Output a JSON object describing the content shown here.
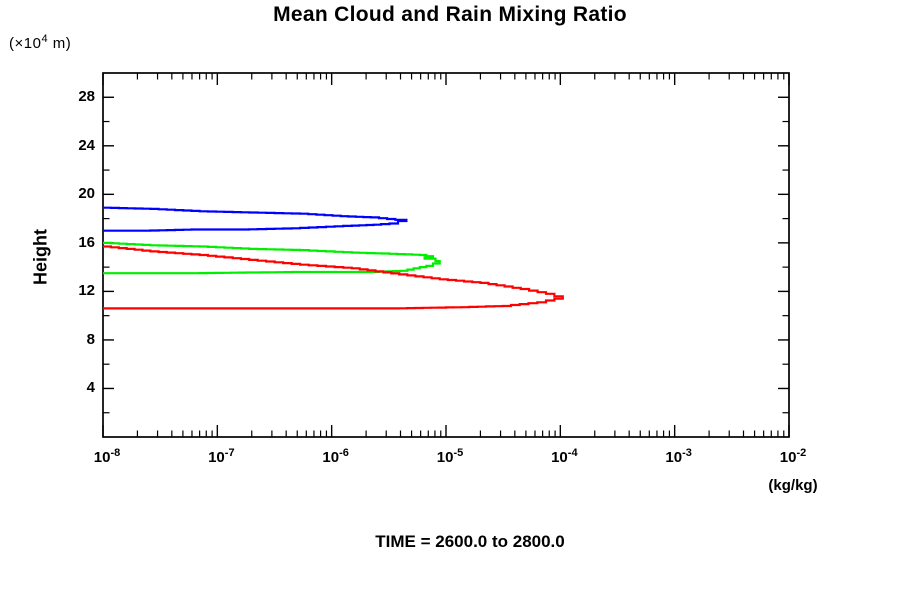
{
  "title": "Mean Cloud and Rain Mixing Ratio",
  "y_unit": {
    "prefix": "(×10",
    "sup": "4",
    "suffix": " m)"
  },
  "y_axis_title": "Height",
  "x_unit_label": "(kg/kg)",
  "caption": "TIME = 2600.0 to 2800.0",
  "chart_data": {
    "type": "line",
    "title": "Mean Cloud and Rain Mixing Ratio",
    "xlabel": "(kg/kg)",
    "ylabel": "Height (×10^4 m)",
    "x_scale": "log",
    "x_tick_base": "10",
    "x_range_exponents": [
      -8,
      -2
    ],
    "x_tick_exponents": [
      -8,
      -7,
      -6,
      -5,
      -4,
      -3,
      -2
    ],
    "ylim": [
      0,
      30
    ],
    "y_major_ticks": [
      4,
      8,
      12,
      16,
      20,
      24,
      28
    ],
    "y_minor_ticks": [
      2,
      6,
      10,
      14,
      18,
      22,
      26
    ],
    "grid": false,
    "legend": "none",
    "frame_color": "#000000",
    "series": [
      {
        "name": "blue-profile",
        "color": "#0000ff",
        "points_value_height": [
          [
            1e-08,
            18.9
          ],
          [
            2.6e-08,
            18.8
          ],
          [
            7e-08,
            18.6
          ],
          [
            1.9e-07,
            18.5
          ],
          [
            5.3e-07,
            18.4
          ],
          [
            1.2e-06,
            18.2
          ],
          [
            2.2e-06,
            18.1
          ],
          [
            3.6e-06,
            17.9
          ],
          [
            4.5e-06,
            17.8
          ],
          [
            3.8e-06,
            17.6
          ],
          [
            2.7e-06,
            17.5
          ],
          [
            1.5e-06,
            17.4
          ],
          [
            5.3e-07,
            17.2
          ],
          [
            1.9e-07,
            17.1
          ],
          [
            7e-08,
            17.1
          ],
          [
            2.6e-08,
            17.0
          ],
          [
            1e-08,
            17.0
          ]
        ]
      },
      {
        "name": "green-profile",
        "color": "#00ee00",
        "points_value_height": [
          [
            1e-08,
            16.0
          ],
          [
            2.6e-08,
            15.8
          ],
          [
            7e-08,
            15.7
          ],
          [
            1.9e-07,
            15.5
          ],
          [
            5.3e-07,
            15.4
          ],
          [
            1.5e-06,
            15.2
          ],
          [
            3.2e-06,
            15.1
          ],
          [
            5.9e-06,
            15.0
          ],
          [
            7.7e-06,
            14.8
          ],
          [
            6.5e-06,
            14.7
          ],
          [
            8.1e-06,
            14.5
          ],
          [
            8.8e-06,
            14.3
          ],
          [
            7.7e-06,
            14.1
          ],
          [
            5.9e-06,
            13.9
          ],
          [
            4.6e-06,
            13.7
          ],
          [
            2.6e-06,
            13.6
          ],
          [
            5.3e-07,
            13.6
          ],
          [
            7e-08,
            13.5
          ],
          [
            1e-08,
            13.5
          ]
        ]
      },
      {
        "name": "red-profile",
        "color": "#ff0000",
        "points_value_height": [
          [
            1e-08,
            15.7
          ],
          [
            2.6e-08,
            15.3
          ],
          [
            7e-08,
            15.0
          ],
          [
            1.9e-07,
            14.6
          ],
          [
            5.3e-07,
            14.2
          ],
          [
            1.5e-06,
            13.9
          ],
          [
            3.9e-06,
            13.4
          ],
          [
            8.8e-06,
            13.0
          ],
          [
            2e-05,
            12.7
          ],
          [
            4.5e-05,
            12.2
          ],
          [
            7.5e-05,
            11.8
          ],
          [
            0.000105,
            11.4
          ],
          [
            7.5e-05,
            11.1
          ],
          [
            3.7e-05,
            10.8
          ],
          [
            1.6e-05,
            10.7
          ],
          [
            3.9e-06,
            10.6
          ],
          [
            5.3e-07,
            10.6
          ],
          [
            7e-08,
            10.6
          ],
          [
            1e-08,
            10.6
          ]
        ]
      }
    ]
  }
}
